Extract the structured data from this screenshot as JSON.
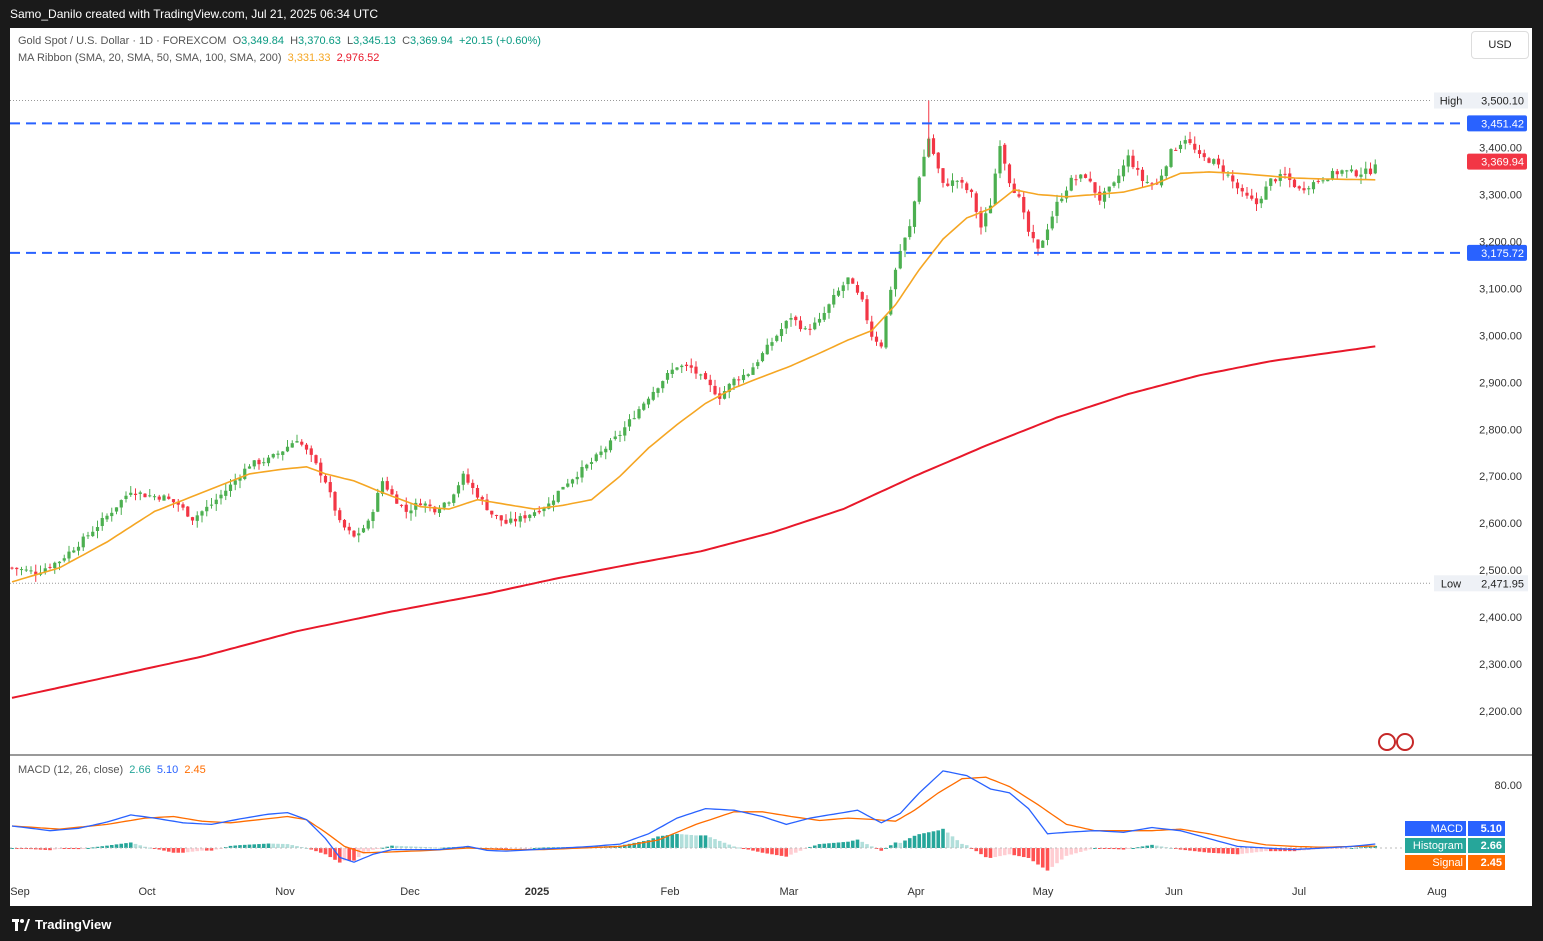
{
  "header": {
    "attribution": "Samo_Danilo created with TradingView.com, Jul 21, 2025 06:34 UTC"
  },
  "footer": {
    "brand": "TradingView"
  },
  "legend": {
    "symbol": "Gold Spot / U.S. Dollar · 1D · FOREXCOM",
    "open_label": "O",
    "open": "3,349.84",
    "high_label": "H",
    "high": "3,370.63",
    "low_label": "L",
    "low": "3,345.13",
    "close_label": "C",
    "close": "3,369.94",
    "change": "+20.15 (+0.60%)",
    "ma_title": "MA Ribbon (SMA, 20, SMA, 50, SMA, 100, SMA, 200)",
    "ma20": "3,331.33",
    "ma200": "2,976.52",
    "macd_title": "MACD (12, 26, close)",
    "macd_hist": "2.66",
    "macd_line": "5.10",
    "macd_signal": "2.45"
  },
  "currency_button": "USD",
  "colors": {
    "up": "#4caf50",
    "down": "#f23645",
    "ma20": "#f5a623",
    "ma200": "#e8182a",
    "level": "#2962ff",
    "macd": "#2962ff",
    "signal": "#ff6d00",
    "hist_pos_strong": "#26a69a",
    "hist_pos_weak": "#b2dfdb",
    "hist_neg_strong": "#ff5252",
    "hist_neg_weak": "#ffcdd2"
  },
  "chart_data": {
    "type": "candlestick",
    "price_axis": {
      "ticks": [
        2200,
        2300,
        2400,
        2500,
        2600,
        2700,
        2800,
        2900,
        3000,
        3100,
        3200,
        3300,
        3400
      ],
      "tick_labels": [
        "2,200.00",
        "2,300.00",
        "2,400.00",
        "2,500.00",
        "2,600.00",
        "2,700.00",
        "2,800.00",
        "2,900.00",
        "3,000.00",
        "3,100.00",
        "3,200.00",
        "3,300.00",
        "3,400.00"
      ],
      "range": [
        2125,
        3520
      ]
    },
    "time_axis": {
      "labels": [
        "Sep",
        "Oct",
        "Nov",
        "Dec",
        "2025",
        "Feb",
        "Mar",
        "Apr",
        "May",
        "Jun",
        "Jul",
        "Aug"
      ]
    },
    "high_marker": {
      "label": "High",
      "value": 3500.1,
      "text": "3,500.10"
    },
    "low_marker": {
      "label": "Low",
      "value": 2471.95,
      "text": "2,471.95"
    },
    "levels": [
      {
        "value": 3451.42,
        "text": "3,451.42"
      },
      {
        "value": 3175.72,
        "text": "3,175.72"
      }
    ],
    "last_price": {
      "value": 3369.94,
      "text": "3,369.94"
    },
    "close_anchors": [
      [
        0,
        2505
      ],
      [
        5,
        2495
      ],
      [
        10,
        2520
      ],
      [
        15,
        2565
      ],
      [
        20,
        2615
      ],
      [
        25,
        2670
      ],
      [
        28,
        2660
      ],
      [
        32,
        2655
      ],
      [
        35,
        2640
      ],
      [
        38,
        2610
      ],
      [
        42,
        2640
      ],
      [
        46,
        2680
      ],
      [
        50,
        2725
      ],
      [
        54,
        2735
      ],
      [
        57,
        2755
      ],
      [
        60,
        2780
      ],
      [
        63,
        2740
      ],
      [
        66,
        2690
      ],
      [
        69,
        2600
      ],
      [
        72,
        2570
      ],
      [
        75,
        2600
      ],
      [
        78,
        2690
      ],
      [
        80,
        2660
      ],
      [
        83,
        2625
      ],
      [
        86,
        2645
      ],
      [
        89,
        2630
      ],
      [
        92,
        2650
      ],
      [
        95,
        2700
      ],
      [
        98,
        2660
      ],
      [
        101,
        2620
      ],
      [
        104,
        2600
      ],
      [
        107,
        2610
      ],
      [
        110,
        2625
      ],
      [
        113,
        2640
      ],
      [
        116,
        2680
      ],
      [
        119,
        2705
      ],
      [
        122,
        2730
      ],
      [
        125,
        2760
      ],
      [
        128,
        2790
      ],
      [
        131,
        2830
      ],
      [
        134,
        2870
      ],
      [
        137,
        2905
      ],
      [
        140,
        2935
      ],
      [
        143,
        2930
      ],
      [
        146,
        2900
      ],
      [
        149,
        2870
      ],
      [
        152,
        2905
      ],
      [
        155,
        2920
      ],
      [
        158,
        2960
      ],
      [
        161,
        3000
      ],
      [
        164,
        3040
      ],
      [
        167,
        3010
      ],
      [
        170,
        3030
      ],
      [
        173,
        3080
      ],
      [
        176,
        3120
      ],
      [
        179,
        3070
      ],
      [
        181,
        3000
      ],
      [
        183,
        2980
      ],
      [
        185,
        3100
      ],
      [
        187,
        3180
      ],
      [
        189,
        3230
      ],
      [
        191,
        3340
      ],
      [
        193,
        3420
      ],
      [
        196,
        3320
      ],
      [
        199,
        3330
      ],
      [
        202,
        3300
      ],
      [
        204,
        3230
      ],
      [
        206,
        3280
      ],
      [
        208,
        3410
      ],
      [
        210,
        3330
      ],
      [
        212,
        3290
      ],
      [
        214,
        3220
      ],
      [
        216,
        3180
      ],
      [
        218,
        3230
      ],
      [
        220,
        3280
      ],
      [
        223,
        3330
      ],
      [
        226,
        3340
      ],
      [
        229,
        3290
      ],
      [
        232,
        3320
      ],
      [
        235,
        3380
      ],
      [
        238,
        3330
      ],
      [
        241,
        3320
      ],
      [
        244,
        3390
      ],
      [
        247,
        3420
      ],
      [
        250,
        3380
      ],
      [
        253,
        3370
      ],
      [
        256,
        3340
      ],
      [
        259,
        3300
      ],
      [
        262,
        3280
      ],
      [
        265,
        3330
      ],
      [
        268,
        3340
      ],
      [
        271,
        3310
      ],
      [
        274,
        3325
      ],
      [
        277,
        3340
      ],
      [
        280,
        3350
      ],
      [
        283,
        3345
      ],
      [
        286,
        3350
      ],
      [
        287,
        3369.94
      ]
    ],
    "ma20_anchors": [
      [
        0,
        2475
      ],
      [
        10,
        2505
      ],
      [
        20,
        2560
      ],
      [
        30,
        2625
      ],
      [
        40,
        2665
      ],
      [
        50,
        2705
      ],
      [
        57,
        2715
      ],
      [
        62,
        2720
      ],
      [
        66,
        2705
      ],
      [
        72,
        2690
      ],
      [
        78,
        2665
      ],
      [
        86,
        2635
      ],
      [
        92,
        2630
      ],
      [
        98,
        2650
      ],
      [
        104,
        2640
      ],
      [
        110,
        2630
      ],
      [
        116,
        2638
      ],
      [
        122,
        2650
      ],
      [
        128,
        2700
      ],
      [
        134,
        2760
      ],
      [
        140,
        2810
      ],
      [
        146,
        2855
      ],
      [
        152,
        2888
      ],
      [
        158,
        2912
      ],
      [
        164,
        2935
      ],
      [
        170,
        2962
      ],
      [
        176,
        2990
      ],
      [
        181,
        3010
      ],
      [
        186,
        3065
      ],
      [
        191,
        3140
      ],
      [
        196,
        3205
      ],
      [
        201,
        3250
      ],
      [
        206,
        3270
      ],
      [
        211,
        3310
      ],
      [
        216,
        3300
      ],
      [
        222,
        3295
      ],
      [
        228,
        3300
      ],
      [
        234,
        3305
      ],
      [
        240,
        3320
      ],
      [
        246,
        3345
      ],
      [
        252,
        3348
      ],
      [
        258,
        3345
      ],
      [
        264,
        3340
      ],
      [
        270,
        3335
      ],
      [
        276,
        3333
      ],
      [
        282,
        3332
      ],
      [
        287,
        3331.33
      ]
    ],
    "ma200_anchors": [
      [
        0,
        2228
      ],
      [
        20,
        2272
      ],
      [
        40,
        2316
      ],
      [
        60,
        2370
      ],
      [
        80,
        2412
      ],
      [
        100,
        2450
      ],
      [
        115,
        2483
      ],
      [
        130,
        2512
      ],
      [
        145,
        2540
      ],
      [
        160,
        2580
      ],
      [
        175,
        2630
      ],
      [
        190,
        2700
      ],
      [
        205,
        2765
      ],
      [
        220,
        2825
      ],
      [
        235,
        2875
      ],
      [
        250,
        2915
      ],
      [
        265,
        2945
      ],
      [
        287,
        2976.52
      ]
    ],
    "macd_axis": {
      "ticks": [
        0,
        40,
        80
      ],
      "tick_labels": [
        "",
        "",
        "80.00"
      ],
      "extra_label_value": 40,
      "extra_label": ""
    },
    "macd_anchors": [
      [
        0,
        28
      ],
      [
        8,
        22
      ],
      [
        14,
        25
      ],
      [
        20,
        33
      ],
      [
        25,
        42
      ],
      [
        30,
        38
      ],
      [
        36,
        32
      ],
      [
        42,
        30
      ],
      [
        48,
        37
      ],
      [
        54,
        43
      ],
      [
        58,
        45
      ],
      [
        62,
        36
      ],
      [
        66,
        12
      ],
      [
        69,
        -12
      ],
      [
        72,
        -18
      ],
      [
        76,
        -8
      ],
      [
        80,
        -2
      ],
      [
        86,
        -2
      ],
      [
        90,
        -2
      ],
      [
        96,
        2
      ],
      [
        100,
        -3
      ],
      [
        104,
        -4
      ],
      [
        110,
        -2
      ],
      [
        116,
        0
      ],
      [
        122,
        2
      ],
      [
        128,
        5
      ],
      [
        134,
        18
      ],
      [
        140,
        38
      ],
      [
        146,
        50
      ],
      [
        152,
        48
      ],
      [
        158,
        40
      ],
      [
        163,
        30
      ],
      [
        168,
        38
      ],
      [
        173,
        43
      ],
      [
        178,
        48
      ],
      [
        183,
        32
      ],
      [
        187,
        44
      ],
      [
        191,
        70
      ],
      [
        196,
        98
      ],
      [
        201,
        92
      ],
      [
        206,
        75
      ],
      [
        210,
        70
      ],
      [
        214,
        50
      ],
      [
        218,
        18
      ],
      [
        222,
        20
      ],
      [
        228,
        22
      ],
      [
        234,
        20
      ],
      [
        240,
        26
      ],
      [
        246,
        22
      ],
      [
        252,
        12
      ],
      [
        258,
        2
      ],
      [
        264,
        0
      ],
      [
        270,
        -2
      ],
      [
        276,
        0
      ],
      [
        282,
        2
      ],
      [
        287,
        5.1
      ]
    ],
    "signal_anchors": [
      [
        0,
        28
      ],
      [
        10,
        24
      ],
      [
        20,
        30
      ],
      [
        28,
        38
      ],
      [
        34,
        40
      ],
      [
        40,
        34
      ],
      [
        46,
        32
      ],
      [
        52,
        36
      ],
      [
        58,
        40
      ],
      [
        62,
        36
      ],
      [
        66,
        20
      ],
      [
        70,
        2
      ],
      [
        74,
        -6
      ],
      [
        80,
        -5
      ],
      [
        88,
        -3
      ],
      [
        96,
        0
      ],
      [
        104,
        -2
      ],
      [
        112,
        -2
      ],
      [
        120,
        0
      ],
      [
        128,
        2
      ],
      [
        136,
        10
      ],
      [
        144,
        30
      ],
      [
        152,
        46
      ],
      [
        158,
        46
      ],
      [
        164,
        40
      ],
      [
        170,
        35
      ],
      [
        176,
        38
      ],
      [
        182,
        36
      ],
      [
        186,
        34
      ],
      [
        190,
        48
      ],
      [
        195,
        70
      ],
      [
        200,
        88
      ],
      [
        205,
        90
      ],
      [
        210,
        78
      ],
      [
        216,
        55
      ],
      [
        222,
        30
      ],
      [
        228,
        22
      ],
      [
        234,
        22
      ],
      [
        240,
        22
      ],
      [
        246,
        24
      ],
      [
        252,
        18
      ],
      [
        258,
        10
      ],
      [
        264,
        4
      ],
      [
        270,
        2
      ],
      [
        276,
        1
      ],
      [
        282,
        2
      ],
      [
        287,
        2.45
      ]
    ],
    "histogram_tail": "2.66",
    "macd_badges": [
      {
        "label": "MACD",
        "value": "5.10"
      },
      {
        "label": "Histogram",
        "value": "2.66"
      },
      {
        "label": "Signal",
        "value": "2.45"
      }
    ]
  }
}
